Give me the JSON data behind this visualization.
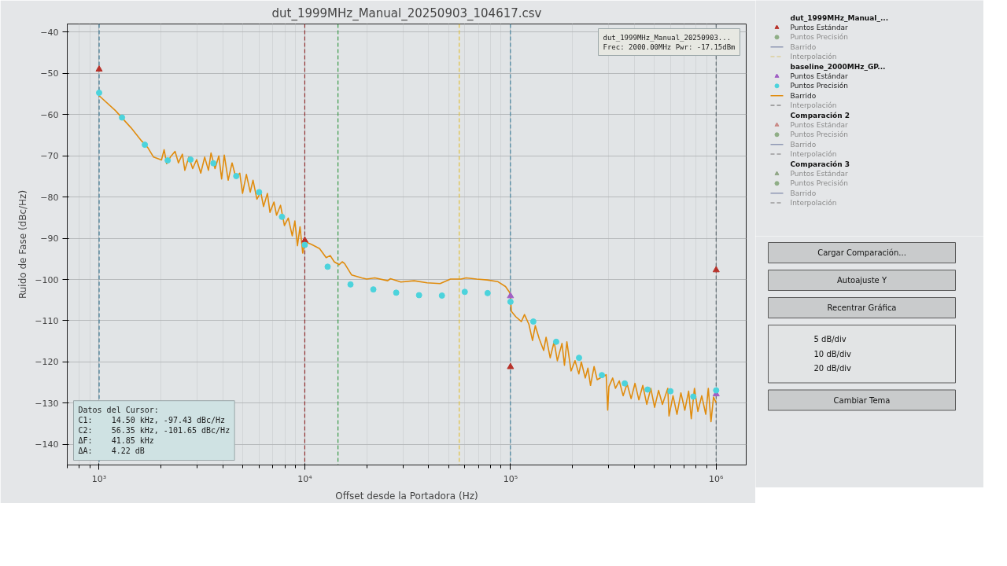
{
  "chart_data": [
    {
      "type": "line",
      "title": "dut_1999MHz_Manual_20250903_104617.csv",
      "xlabel": "Offset desde la Portadora (Hz)",
      "ylabel": "Ruido de Fase (dBc/Hz)",
      "log": "x",
      "xlim": [
        700,
        1400000
      ],
      "ylim": [
        -145,
        -38
      ],
      "xticks": [
        {
          "value": 1000,
          "label": "10³"
        },
        {
          "value": 10000,
          "label": "10⁴"
        },
        {
          "value": 100000,
          "label": "10⁵"
        },
        {
          "value": 1000000,
          "label": "10⁶"
        }
      ],
      "yticks": [
        -140,
        -130,
        -120,
        -110,
        -100,
        -90,
        -80,
        -70,
        -60,
        -50,
        -40
      ],
      "grid": true,
      "legend": "right",
      "series": [
        {
          "name": "dut_1999MHz_Manual_..."
        },
        {
          "name": "Puntos Estándar",
          "type": "scatter",
          "marker": "triangle",
          "color": "#b8322a",
          "x": [
            1000,
            10000,
            100000,
            1000000
          ],
          "values": [
            -49,
            -90.5,
            -121.2,
            -97.7
          ]
        },
        {
          "name": "Puntos Precisión",
          "type": "scatter",
          "marker": "circle",
          "color": "#8fae86"
        },
        {
          "name": "Barrido",
          "type": "line",
          "line_style": "solid",
          "color": "#8e97b3"
        },
        {
          "name": "Interpolación",
          "type": "line",
          "line_style": "dashed",
          "color": "#dccf9a"
        },
        {
          "name": "baseline_2000MHz_GP..."
        },
        {
          "name": "Puntos Estándar",
          "type": "scatter",
          "marker": "triangle",
          "color": "#a05fc4",
          "x": [
            100000,
            1000000
          ],
          "values": [
            -104.0,
            -127.8
          ]
        },
        {
          "name": "Puntos Precisión",
          "type": "scatter",
          "marker": "circle",
          "color": "#4cd3dc",
          "x": [
            1000,
            1292,
            1668,
            2154,
            2783,
            3594,
            4642,
            5995,
            7743,
            10000,
            12915,
            16681,
            21544,
            27826,
            35938,
            46416,
            59948,
            77426,
            100000,
            129155,
            166810,
            215443,
            278256,
            359381,
            464159,
            599484,
            774264,
            1000000
          ],
          "values": [
            -54.7,
            -60.7,
            -67.3,
            -71.1,
            -70.9,
            -71.8,
            -74.9,
            -78.8,
            -84.8,
            -91.6,
            -96.9,
            -101.2,
            -102.4,
            -103.2,
            -103.8,
            -103.9,
            -103.0,
            -103.3,
            -105.4,
            -110.2,
            -115.1,
            -119.0,
            -123.2,
            -125.2,
            -126.7,
            -127.1,
            -128.4,
            -126.9
          ]
        },
        {
          "name": "Barrido",
          "type": "line",
          "line_style": "solid",
          "color": "#e08c0e",
          "x": [
            1000,
            1200,
            1430,
            1610,
            1730,
            1840,
            2010,
            2070,
            2130,
            2220,
            2340,
            2430,
            2540,
            2610,
            2730,
            2850,
            2980,
            3120,
            3260,
            3400,
            3500,
            3660,
            3820,
            3940,
            4060,
            4240,
            4430,
            4620,
            4830,
            4980,
            5200,
            5430,
            5600,
            5850,
            6110,
            6300,
            6580,
            6770,
            7080,
            7290,
            7620,
            7960,
            8310,
            8690,
            8950,
            9210,
            9480,
            9770,
            10000,
            10800,
            11800,
            12700,
            13300,
            13900,
            14700,
            15200,
            15600,
            16900,
            18900,
            20000,
            21900,
            25300,
            26100,
            29300,
            34000,
            39300,
            45500,
            51100,
            57500,
            60900,
            68500,
            77100,
            86600,
            94600,
            98900,
            100000,
            101000,
            106000,
            113000,
            117000,
            123000,
            128000,
            132000,
            138000,
            145000,
            149000,
            156000,
            163000,
            169000,
            178000,
            183000,
            188000,
            197000,
            206000,
            215000,
            221000,
            231000,
            238000,
            245000,
            255000,
            264000,
            280000,
            292000,
            297000,
            301000,
            314000,
            324000,
            338000,
            353000,
            369000,
            386000,
            403000,
            421000,
            440000,
            460000,
            481000,
            502000,
            525000,
            548000,
            582000,
            590000,
            617000,
            645000,
            674000,
            704000,
            735000,
            757000,
            784000,
            815000,
            851000,
            890000,
            916000,
            944000,
            971000,
            1000000
          ],
          "values": [
            -55.4,
            -59.0,
            -63.2,
            -66.4,
            -68.1,
            -70.3,
            -71.0,
            -68.5,
            -71.9,
            -70.3,
            -68.9,
            -71.7,
            -69.6,
            -73.5,
            -70.3,
            -73.1,
            -70.9,
            -74.2,
            -70.3,
            -73.5,
            -69.3,
            -73.1,
            -70.0,
            -75.6,
            -69.8,
            -75.9,
            -71.7,
            -75.2,
            -74.2,
            -79.1,
            -74.5,
            -78.8,
            -75.9,
            -80.5,
            -78.8,
            -82.3,
            -79.1,
            -83.7,
            -81.2,
            -84.4,
            -82.0,
            -86.9,
            -85.1,
            -89.4,
            -85.8,
            -91.8,
            -87.2,
            -93.6,
            -90.8,
            -91.5,
            -92.5,
            -94.7,
            -94.2,
            -95.7,
            -96.4,
            -95.7,
            -96.1,
            -98.9,
            -99.6,
            -99.9,
            -99.6,
            -100.3,
            -99.8,
            -100.6,
            -100.3,
            -100.8,
            -101.0,
            -99.9,
            -99.9,
            -99.6,
            -99.9,
            -100.1,
            -100.5,
            -101.7,
            -103.1,
            -103.8,
            -107.7,
            -109.0,
            -110.2,
            -108.5,
            -110.9,
            -114.8,
            -111.2,
            -114.4,
            -117.2,
            -114.0,
            -119.0,
            -115.1,
            -119.7,
            -115.5,
            -120.8,
            -115.1,
            -122.2,
            -119.7,
            -122.9,
            -120.0,
            -123.9,
            -121.5,
            -125.7,
            -121.1,
            -124.3,
            -123.6,
            -123.1,
            -131.7,
            -126.0,
            -123.9,
            -126.4,
            -124.6,
            -128.2,
            -125.3,
            -128.9,
            -125.2,
            -129.2,
            -125.7,
            -130.3,
            -126.4,
            -131.0,
            -126.9,
            -130.3,
            -126.4,
            -133.1,
            -128.2,
            -132.7,
            -127.5,
            -131.7,
            -127.1,
            -133.8,
            -126.4,
            -132.0,
            -128.2,
            -132.7,
            -126.4,
            -134.5,
            -128.5,
            -129.9
          ]
        },
        {
          "name": "Interpolación",
          "type": "line",
          "line_style": "dashed",
          "color": "#8c8c8c"
        },
        {
          "name": "Comparación 2"
        },
        {
          "name": "Puntos Estándar",
          "type": "scatter",
          "marker": "triangle",
          "color": "#c98a86"
        },
        {
          "name": "Puntos Precisión",
          "type": "scatter",
          "marker": "circle",
          "color": "#8fae86"
        },
        {
          "name": "Barrido",
          "type": "line",
          "line_style": "solid",
          "color": "#8e97b3"
        },
        {
          "name": "Interpolación",
          "type": "line",
          "line_style": "dashed",
          "color": "#9a9a9a"
        },
        {
          "name": "Comparación 3"
        },
        {
          "name": "Puntos Estándar",
          "type": "scatter",
          "marker": "triangle",
          "color": "#8fa585"
        },
        {
          "name": "Puntos Precisión",
          "type": "scatter",
          "marker": "circle",
          "color": "#8fae86"
        },
        {
          "name": "Barrido",
          "type": "line",
          "line_style": "solid",
          "color": "#8e97b3"
        },
        {
          "name": "Interpolación",
          "type": "line",
          "line_style": "dashed",
          "color": "#9a9a9a"
        }
      ],
      "ref_lines": [
        {
          "axis": "x",
          "value": 1000,
          "color": "#3a7590",
          "line_style": "dashed"
        },
        {
          "axis": "x",
          "value": 10000,
          "color": "#8e2a2a",
          "line_style": "dashed"
        },
        {
          "axis": "x",
          "value": 14500,
          "color": "#3a9a4a",
          "line_style": "dashed"
        },
        {
          "axis": "x",
          "value": 56350,
          "color": "#e0c040",
          "line_style": "dashed"
        },
        {
          "axis": "x",
          "value": 100000,
          "color": "#4a88a3",
          "line_style": "dashed"
        },
        {
          "axis": "x",
          "value": 1000000,
          "color": "#5d6a70",
          "line_style": "dashed"
        }
      ],
      "annotations": [
        "Datos del Cursor:\nC1:    14.50 kHz, -97.43 dBc/Hz\nC2:    56.35 kHz, -101.65 dBc/Hz\nΔF:    41.85 kHz\nΔA:    4.22 dB",
        "dut_1999MHz_Manual_20250903...\nFrec: 2000.00MHz Pwr: -17.15dBm"
      ]
    },
    {
      "type": "other",
      "annotations": [
        "Cargar Comparación...",
        "Autoajuste Y",
        "Recentrar Gráfica",
        "5 dB/div\n10 dB/div\n20 dB/div",
        "Cambiar Tema"
      ]
    }
  ]
}
